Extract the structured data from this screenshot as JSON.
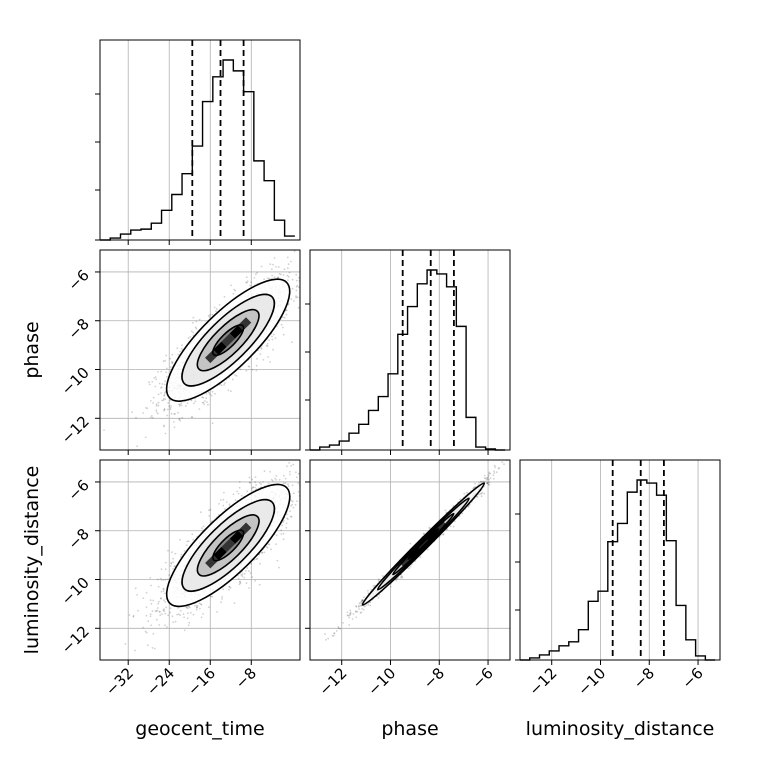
{
  "chart_data": {
    "type": "corner",
    "parameters": [
      "geocent_time",
      "phase",
      "luminosity_distance"
    ],
    "axis_labels": {
      "x": [
        "geocent_time",
        "phase",
        "luminosity_distance"
      ],
      "y": [
        "phase",
        "luminosity_distance"
      ]
    },
    "ranges": {
      "geocent_time": [
        -37.5,
        1.5
      ],
      "phase": [
        -13.3,
        -5.1
      ],
      "luminosity_distance": [
        -13.3,
        -5.1
      ]
    },
    "ticks": {
      "geocent_time": [
        -32,
        -24,
        -16,
        -8
      ],
      "phase": [
        -12,
        -10,
        -8,
        -6
      ],
      "luminosity_distance": [
        -12,
        -10,
        -8,
        -6
      ]
    },
    "tick_labels": {
      "geocent_time": [
        "−32",
        "−24",
        "−16",
        "−8"
      ],
      "phase": [
        "−12",
        "−10",
        "−8",
        "−6"
      ],
      "luminosity_distance": [
        "−12",
        "−10",
        "−8",
        "−6"
      ]
    },
    "grid": true,
    "histograms": [
      {
        "parameter": "geocent_time",
        "bin_edges": [
          -37.5,
          -35.5,
          -33.5,
          -31.5,
          -29.5,
          -27.5,
          -25.5,
          -23.5,
          -21.5,
          -19.5,
          -17.5,
          -15.5,
          -13.5,
          -11.5,
          -9.5,
          -7.5,
          -5.5,
          -3.5,
          -1.5,
          0.5
        ],
        "counts": [
          0,
          2,
          6,
          10,
          11,
          17,
          30,
          46,
          67,
          95,
          140,
          165,
          182,
          171,
          150,
          80,
          60,
          20,
          4
        ],
        "quantiles": [
          -19.5,
          -14.0,
          -9.5
        ]
      },
      {
        "parameter": "phase",
        "bin_edges": [
          -13.3,
          -12.9,
          -12.5,
          -12.1,
          -11.7,
          -11.3,
          -10.9,
          -10.5,
          -10.1,
          -9.7,
          -9.3,
          -8.9,
          -8.5,
          -8.1,
          -7.7,
          -7.3,
          -6.9,
          -6.5,
          -6.1,
          -5.7,
          -5.3
        ],
        "counts": [
          0,
          3,
          5,
          9,
          17,
          26,
          40,
          54,
          77,
          117,
          145,
          168,
          182,
          178,
          165,
          125,
          33,
          3,
          1,
          0
        ],
        "quantiles": [
          -9.5,
          -8.35,
          -7.4
        ]
      },
      {
        "parameter": "luminosity_distance",
        "bin_edges": [
          -13.3,
          -12.9,
          -12.5,
          -12.1,
          -11.7,
          -11.3,
          -10.9,
          -10.5,
          -10.1,
          -9.7,
          -9.3,
          -8.9,
          -8.5,
          -8.1,
          -7.7,
          -7.3,
          -6.9,
          -6.5,
          -6.1,
          -5.7,
          -5.3
        ],
        "counts": [
          0,
          2,
          5,
          9,
          14,
          18,
          30,
          58,
          68,
          117,
          135,
          166,
          178,
          175,
          163,
          118,
          54,
          20,
          4,
          0
        ],
        "quantiles": [
          -9.5,
          -8.35,
          -7.4
        ]
      }
    ],
    "joint_2d": [
      {
        "x": "geocent_time",
        "y": "phase",
        "mean": [
          -12.5,
          -8.8
        ],
        "sd": [
          6.0,
          1.25
        ],
        "correlation": 0.8,
        "contour_levels_sigma": [
          0.5,
          1.0,
          1.5,
          2.0
        ],
        "n_points": 2200
      },
      {
        "x": "geocent_time",
        "y": "luminosity_distance",
        "mean": [
          -12.5,
          -8.6
        ],
        "sd": [
          6.0,
          1.25
        ],
        "correlation": 0.8,
        "contour_levels_sigma": [
          0.5,
          1.0,
          1.5,
          2.0
        ],
        "n_points": 2200
      },
      {
        "x": "phase",
        "y": "luminosity_distance",
        "mean": [
          -8.65,
          -8.55
        ],
        "sd": [
          1.25,
          1.25
        ],
        "correlation": 0.993,
        "contour_levels_sigma": [
          0.5,
          1.0,
          1.5,
          2.0
        ],
        "n_points": 1800
      }
    ]
  }
}
